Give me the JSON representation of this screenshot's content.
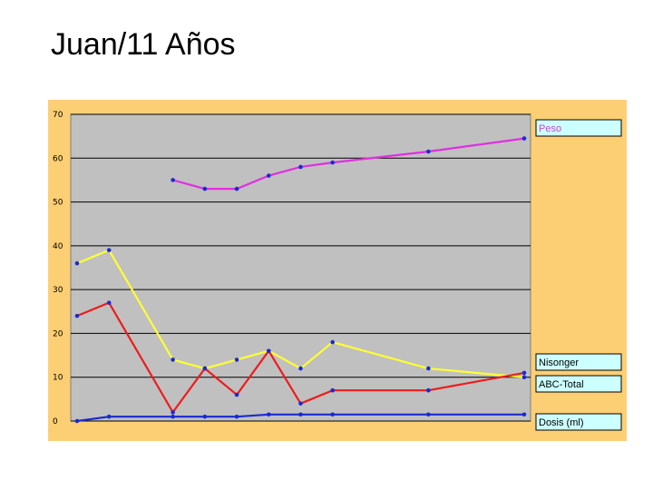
{
  "slide": {
    "title": "Juan/11 Años"
  },
  "colors": {
    "chart_background": "#fdcf74",
    "plot_background": "#c0c0c0",
    "legend_box": "#ccffff",
    "grid": "#000000"
  },
  "chart_data": {
    "type": "line",
    "ylim": [
      0,
      70
    ],
    "y_ticks": [
      "0",
      "10",
      "20",
      "30",
      "40",
      "50",
      "60",
      "70"
    ],
    "grid": true,
    "legend": "right",
    "series": [
      {
        "name": "Peso",
        "color": "#e030e0",
        "label_color": "#cc44cc",
        "points": [
          [
            3,
            55
          ],
          [
            4,
            53
          ],
          [
            5,
            53
          ],
          [
            6,
            56
          ],
          [
            7,
            58
          ],
          [
            8,
            59
          ],
          [
            11,
            61.5
          ],
          [
            14,
            64.5
          ]
        ]
      },
      {
        "name": "Nisonger",
        "color": "#ffff33",
        "label_color": "#000000",
        "points": [
          [
            0,
            36
          ],
          [
            1,
            39
          ],
          [
            3,
            14
          ],
          [
            4,
            12
          ],
          [
            5,
            14
          ],
          [
            6,
            16
          ],
          [
            7,
            12
          ],
          [
            8,
            18
          ],
          [
            11,
            12
          ],
          [
            14,
            10
          ]
        ]
      },
      {
        "name": "ABC-Total",
        "color": "#ee1c1c",
        "label_color": "#000000",
        "points": [
          [
            0,
            24
          ],
          [
            1,
            27
          ],
          [
            3,
            2
          ],
          [
            4,
            12
          ],
          [
            5,
            6
          ],
          [
            6,
            16
          ],
          [
            7,
            4
          ],
          [
            8,
            7
          ],
          [
            11,
            7
          ],
          [
            14,
            11
          ]
        ]
      },
      {
        "name": "Dosis (ml)",
        "color": "#1a2bd0",
        "label_color": "#000000",
        "points": [
          [
            0,
            0
          ],
          [
            1,
            1
          ],
          [
            3,
            1
          ],
          [
            4,
            1
          ],
          [
            5,
            1
          ],
          [
            6,
            1.5
          ],
          [
            7,
            1.5
          ],
          [
            8,
            1.5
          ],
          [
            11,
            1.5
          ],
          [
            14,
            1.5
          ]
        ]
      }
    ]
  }
}
